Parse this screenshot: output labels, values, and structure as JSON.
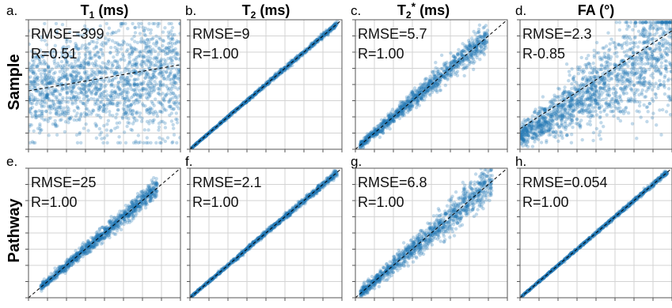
{
  "figure": {
    "columns": [
      {
        "letter_top": "a.",
        "letter_bottom": "e.",
        "title_main": "T",
        "title_sub": "1",
        "title_sup": "",
        "title_tail": " (ms)"
      },
      {
        "letter_top": "b.",
        "letter_bottom": "f.",
        "title_main": "T",
        "title_sub": "2",
        "title_sup": "",
        "title_tail": " (ms)"
      },
      {
        "letter_top": "c.",
        "letter_bottom": "g.",
        "title_main": "T",
        "title_sub": "2",
        "title_sup": "*",
        "title_tail": " (ms)"
      },
      {
        "letter_top": "d.",
        "letter_bottom": "h.",
        "title_main": "FA (°)",
        "title_sub": "",
        "title_sup": "",
        "title_tail": ""
      }
    ],
    "row_labels": [
      "Sample",
      "Pathway"
    ],
    "colors": {
      "point": "#1f77b4",
      "identity_line": "#000000",
      "grid": "#d3d3d3",
      "frame": "#555555"
    }
  },
  "chart_data": [
    {
      "type": "scatter",
      "panel": "a",
      "row": "Sample",
      "variable": "T1 (ms)",
      "stats": [
        "RMSE=399",
        "R=0.51"
      ],
      "shape": "fan",
      "fit_line": true,
      "correlation": 0.51
    },
    {
      "type": "scatter",
      "panel": "b",
      "row": "Sample",
      "variable": "T2 (ms)",
      "stats": [
        "RMSE=9",
        "R=1.00"
      ],
      "shape": "identity",
      "correlation": 1.0
    },
    {
      "type": "scatter",
      "panel": "c",
      "row": "Sample",
      "variable": "T2* (ms)",
      "stats": [
        "RMSE=5.7",
        "R=1.00"
      ],
      "shape": "identity",
      "correlation": 1.0
    },
    {
      "type": "scatter",
      "panel": "d",
      "row": "Sample",
      "variable": "FA (°)",
      "stats": [
        "RMSE=2.3",
        "R-0.85"
      ],
      "shape": "fan",
      "fit_line": true,
      "correlation": 0.85
    },
    {
      "type": "scatter",
      "panel": "e",
      "row": "Pathway",
      "variable": "T1 (ms)",
      "stats": [
        "RMSE=25",
        "R=1.00"
      ],
      "shape": "identity",
      "correlation": 1.0
    },
    {
      "type": "scatter",
      "panel": "f",
      "row": "Pathway",
      "variable": "T2 (ms)",
      "stats": [
        "RMSE=2.1",
        "R=1.00"
      ],
      "shape": "identity",
      "correlation": 1.0
    },
    {
      "type": "scatter",
      "panel": "g",
      "row": "Pathway",
      "variable": "T2* (ms)",
      "stats": [
        "RMSE=6.8",
        "R=1.00"
      ],
      "shape": "identity",
      "correlation": 1.0
    },
    {
      "type": "scatter",
      "panel": "h",
      "row": "Pathway",
      "variable": "FA (°)",
      "stats": [
        "RMSE=0.054",
        "R=1.00"
      ],
      "shape": "identity",
      "correlation": 1.0
    }
  ]
}
